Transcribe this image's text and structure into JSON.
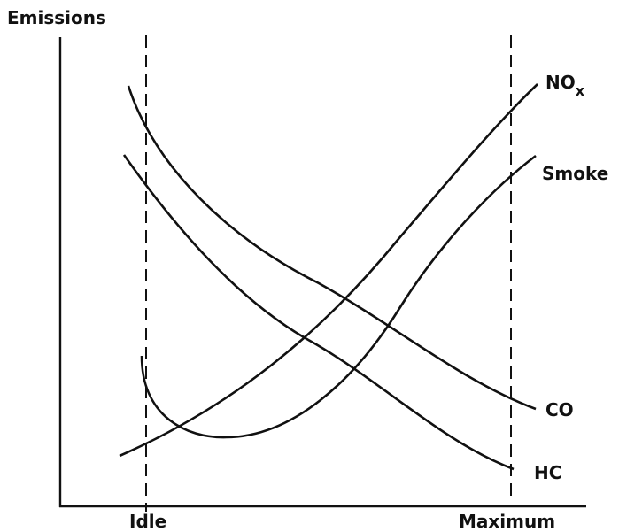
{
  "axes": {
    "y_label": "Emissions",
    "x_start_label": "Idle",
    "x_end_label": "Maximum"
  },
  "curves": [
    {
      "label": "NO",
      "subscript": "x"
    },
    {
      "label": "Smoke"
    },
    {
      "label": "CO"
    },
    {
      "label": "HC"
    }
  ]
}
